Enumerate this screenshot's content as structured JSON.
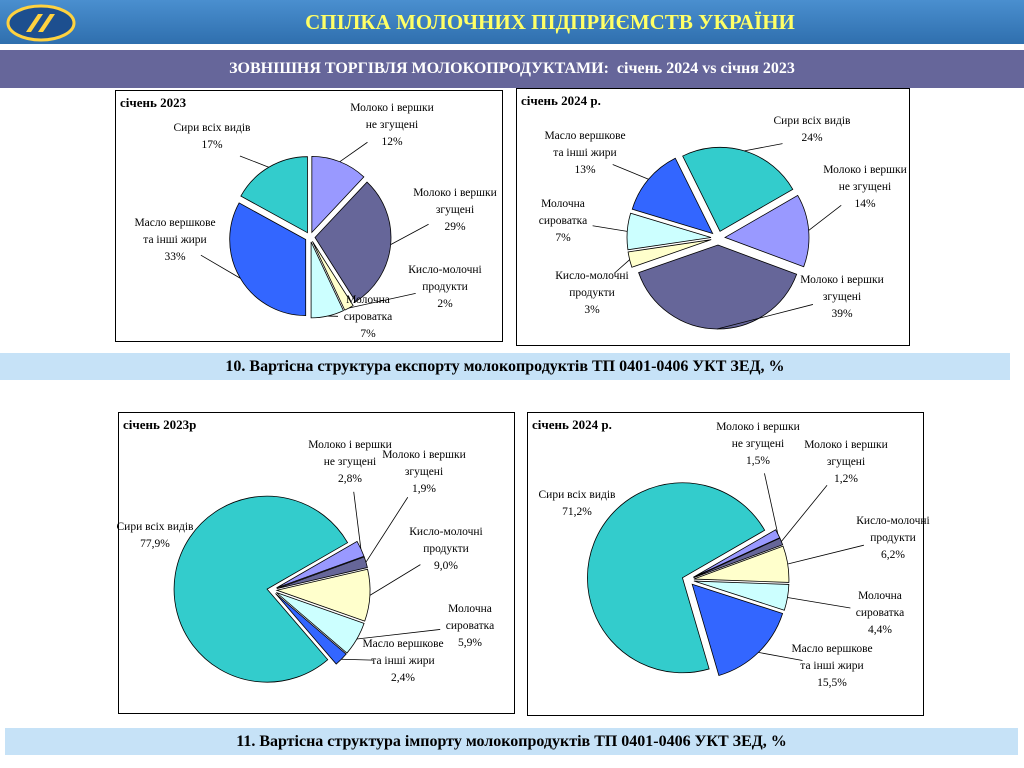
{
  "header": {
    "title": "СПІЛКА МОЛОЧНИХ ПІДПРИЄМСТВ УКРАЇНИ",
    "subtitle": "ЗОВНІШНЯ ТОРГІВЛЯ МОЛОКОПРОДУКТАМИ:  січень 2024 vs січня 2023"
  },
  "captions": [
    "10. Вартісна структура експорту молокопродуктів ТП 0401-0406 УКТ ЗЕД, %",
    "11. Вартісна структура імпорту молокопродуктів ТП 0401-0406 УКТ ЗЕД, %"
  ],
  "chart_data": [
    {
      "type": "pie",
      "title": "січень 2023",
      "categories": [
        "Молоко і вершки не згущені",
        "Молоко і вершки згущені",
        "Кисло-молочні продукти",
        "Молочна сироватка",
        "Масло вершкове та інші жири",
        "Сири всіх видів"
      ],
      "values": [
        12,
        29,
        2,
        7,
        33,
        17
      ],
      "value_labels": [
        "12%",
        "29%",
        "2%",
        "7%",
        "33%",
        "17%"
      ],
      "colors": [
        "#9999ff",
        "#666699",
        "#ffffcc",
        "#ccffff",
        "#3366ff",
        "#33cccc"
      ]
    },
    {
      "type": "pie",
      "title": "січень 2024 р.",
      "categories": [
        "Молоко і вершки не згущені",
        "Молоко і вершки згущені",
        "Кисло-молочні продукти",
        "Молочна сироватка",
        "Масло вершкове та інші жири",
        "Сири всіх видів"
      ],
      "values": [
        14,
        39,
        3,
        7,
        13,
        24
      ],
      "value_labels": [
        "14%",
        "39%",
        "3%",
        "7%",
        "13%",
        "24%"
      ],
      "colors": [
        "#9999ff",
        "#666699",
        "#ffffcc",
        "#ccffff",
        "#3366ff",
        "#33cccc"
      ]
    },
    {
      "type": "pie",
      "title": "січень 2023р",
      "categories": [
        "Молоко і вершки не згущені",
        "Молоко і вершки згущені",
        "Кисло-молочні продукти",
        "Молочна сироватка",
        "Масло вершкове та інші жири",
        "Сири всіх видів"
      ],
      "values": [
        2.8,
        1.9,
        9.0,
        5.9,
        2.4,
        77.9
      ],
      "value_labels": [
        "2,8%",
        "1,9%",
        "9,0%",
        "5,9%",
        "2,4%",
        "77,9%"
      ],
      "colors": [
        "#9999ff",
        "#666699",
        "#ffffcc",
        "#ccffff",
        "#3366ff",
        "#33cccc"
      ]
    },
    {
      "type": "pie",
      "title": "січень 2024 р.",
      "categories": [
        "Молоко і вершки не згущені",
        "Молоко і вершки згущені",
        "Кисло-молочні продукти",
        "Молочна сироватка",
        "Масло вершкове та інші жири",
        "Сири всіх видів"
      ],
      "values": [
        1.5,
        1.2,
        6.2,
        4.4,
        15.5,
        71.2
      ],
      "value_labels": [
        "1,5%",
        "1,2%",
        "6,2%",
        "4,4%",
        "15,5%",
        "71,2%"
      ],
      "colors": [
        "#9999ff",
        "#666699",
        "#ffffcc",
        "#ccffff",
        "#3366ff",
        "#33cccc"
      ]
    }
  ]
}
